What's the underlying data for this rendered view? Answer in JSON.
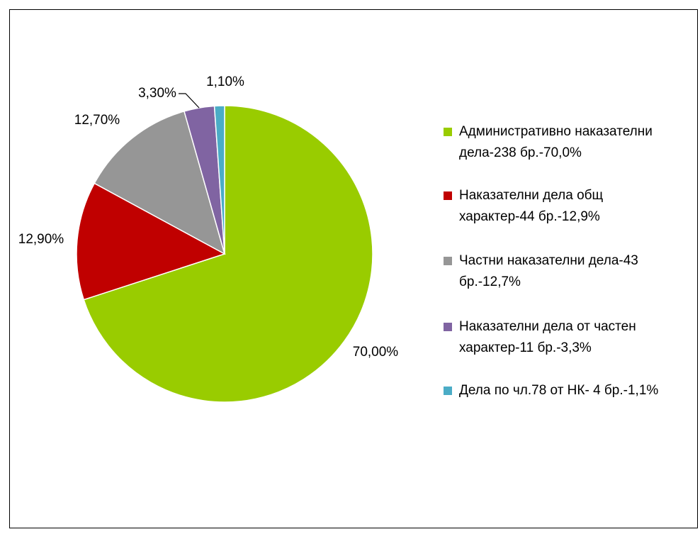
{
  "chart_data": {
    "type": "pie",
    "categories": [
      "Административно наказателни дела-238 бр.-70,0%",
      "Наказателни дела общ характер-44 бр.-12,9%",
      "Частни наказателни дела-43 бр.-12,7%",
      "Наказателни дела от частен характер-11 бр.-3,3%",
      "Дела по чл.78 от НК- 4 бр.-1,1%"
    ],
    "values": [
      70,
      12.9,
      12.7,
      3.3,
      1.1
    ],
    "value_labels": [
      "70,00%",
      "12,90%",
      "12,70%",
      "3,30%",
      "1,10%"
    ],
    "colors": [
      "#99cc00",
      "#c00000",
      "#969696",
      "#8064a2",
      "#4bacc6"
    ],
    "legend": "right"
  }
}
